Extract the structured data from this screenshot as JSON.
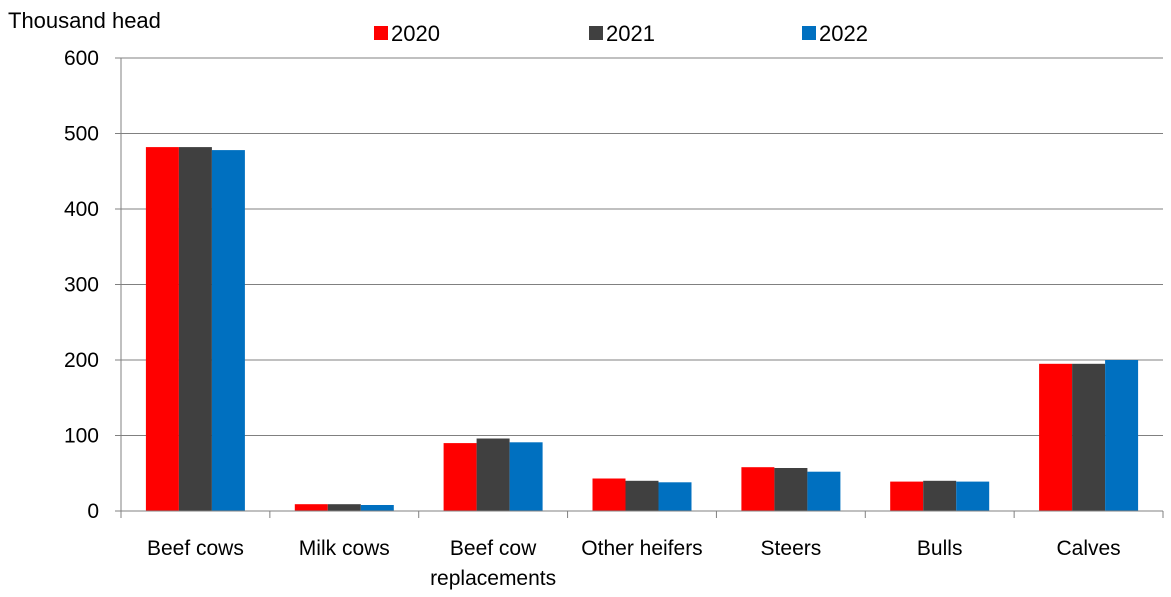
{
  "chart_data": {
    "type": "bar",
    "title": "",
    "xlabel": "",
    "ylabel": "Thousand head",
    "ylim": [
      0,
      600
    ],
    "yticks": [
      "0",
      "100",
      "200",
      "300",
      "400",
      "500",
      "600"
    ],
    "grid": true,
    "legend_position": "top",
    "categories": [
      [
        "Beef cows"
      ],
      [
        "Milk cows"
      ],
      [
        "Beef cow",
        "replacements"
      ],
      [
        "Other heifers"
      ],
      [
        "Steers"
      ],
      [
        "Bulls"
      ],
      [
        "Calves"
      ]
    ],
    "series": [
      {
        "name": "2020",
        "color": "#ff0000",
        "values": [
          482,
          9,
          90,
          43,
          58,
          39,
          195
        ]
      },
      {
        "name": "2021",
        "color": "#404040",
        "values": [
          482,
          9,
          96,
          40,
          57,
          40,
          195
        ]
      },
      {
        "name": "2022",
        "color": "#0070c0",
        "values": [
          478,
          8,
          91,
          38,
          52,
          39,
          200
        ]
      }
    ]
  }
}
